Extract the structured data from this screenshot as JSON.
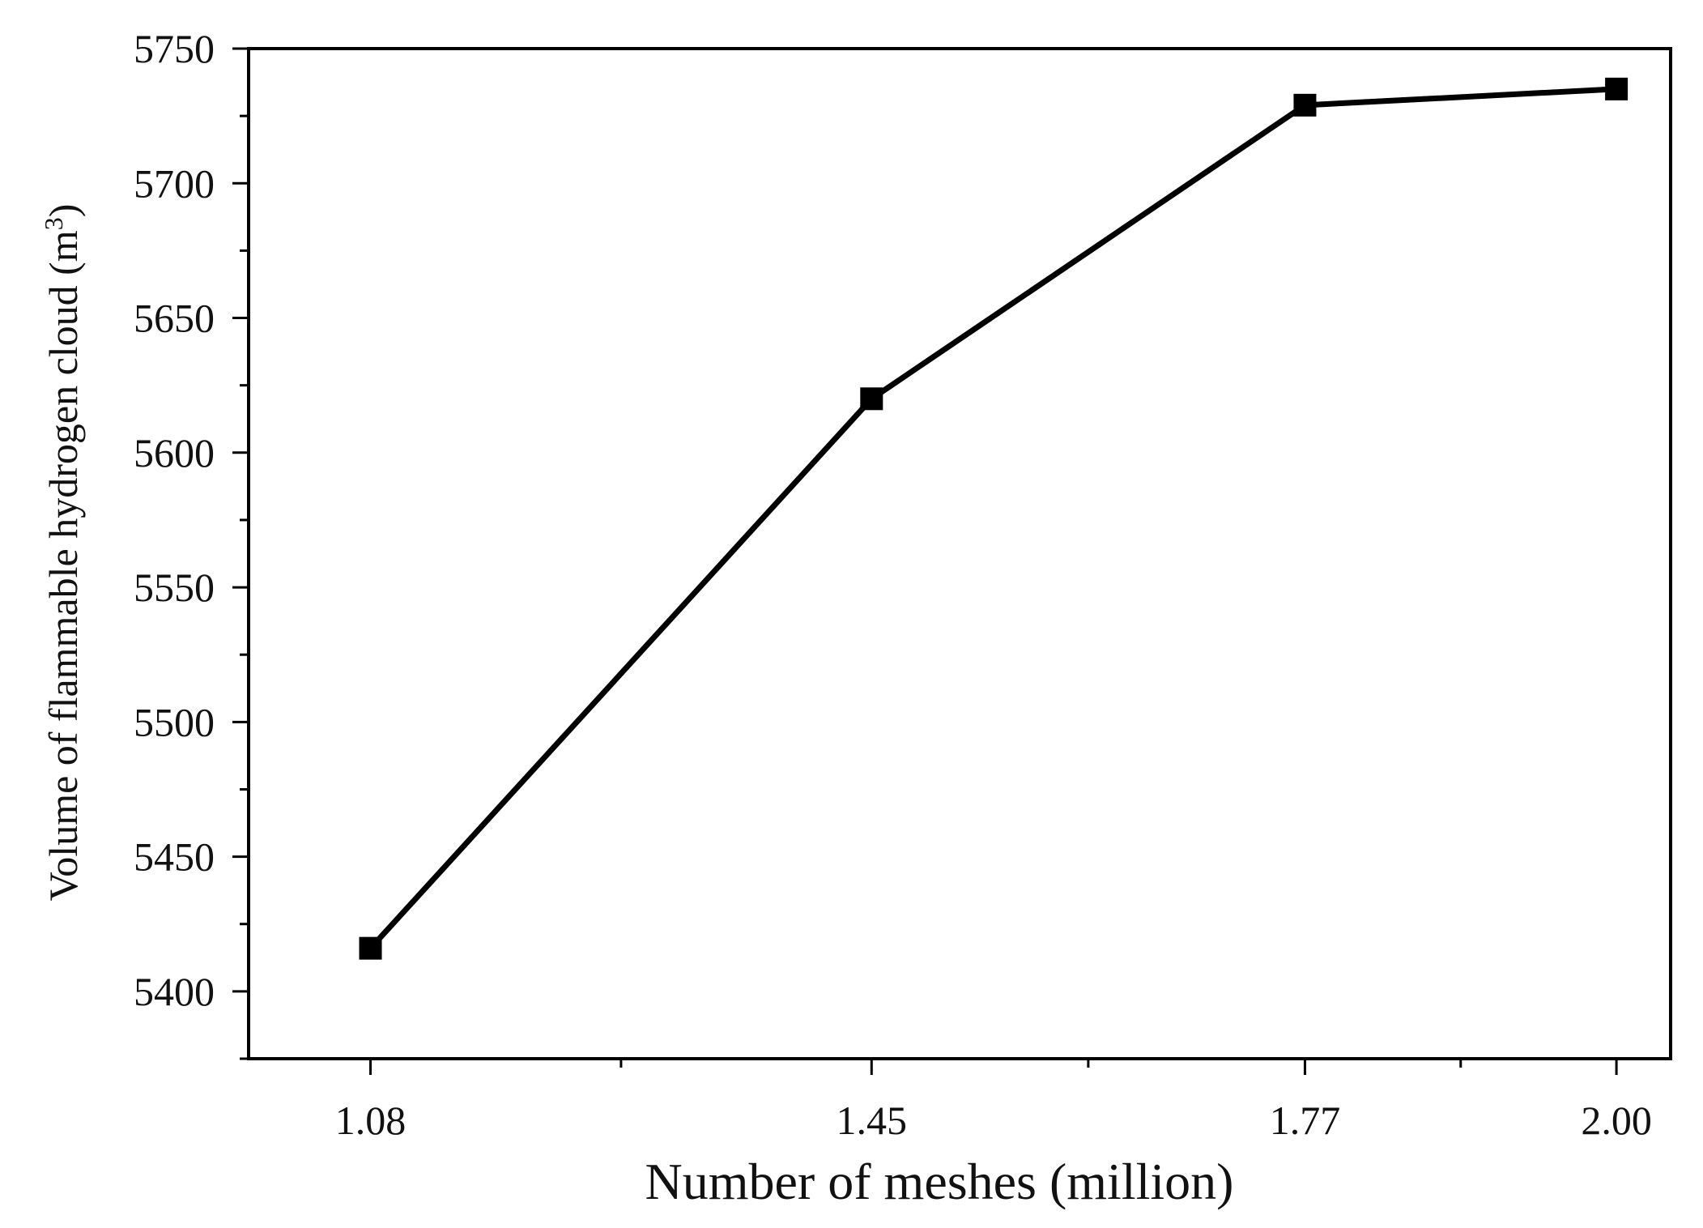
{
  "chart_data": {
    "type": "line",
    "title": "",
    "xlabel": "Number of meshes (million)",
    "ylabel": "Volume of flammable hydrogen cloud (m³)",
    "x": [
      1.08,
      1.45,
      1.77,
      2.0
    ],
    "x_tick_labels": [
      "1.08",
      "1.45",
      "1.77",
      "2.00"
    ],
    "x_minor_ticks": [
      1.265,
      1.61,
      1.885
    ],
    "xlim": [
      0.99,
      2.04
    ],
    "ylim": [
      5375,
      5750
    ],
    "y_ticks": [
      5400,
      5450,
      5500,
      5550,
      5600,
      5650,
      5700,
      5750
    ],
    "y_minor_ticks": [
      5375,
      5425,
      5475,
      5525,
      5575,
      5625,
      5675,
      5725
    ],
    "grid": false,
    "legend": "none",
    "series": [
      {
        "values": [
          5416,
          5620,
          5729,
          5735
        ],
        "color": "#000000",
        "marker": "square"
      }
    ]
  }
}
